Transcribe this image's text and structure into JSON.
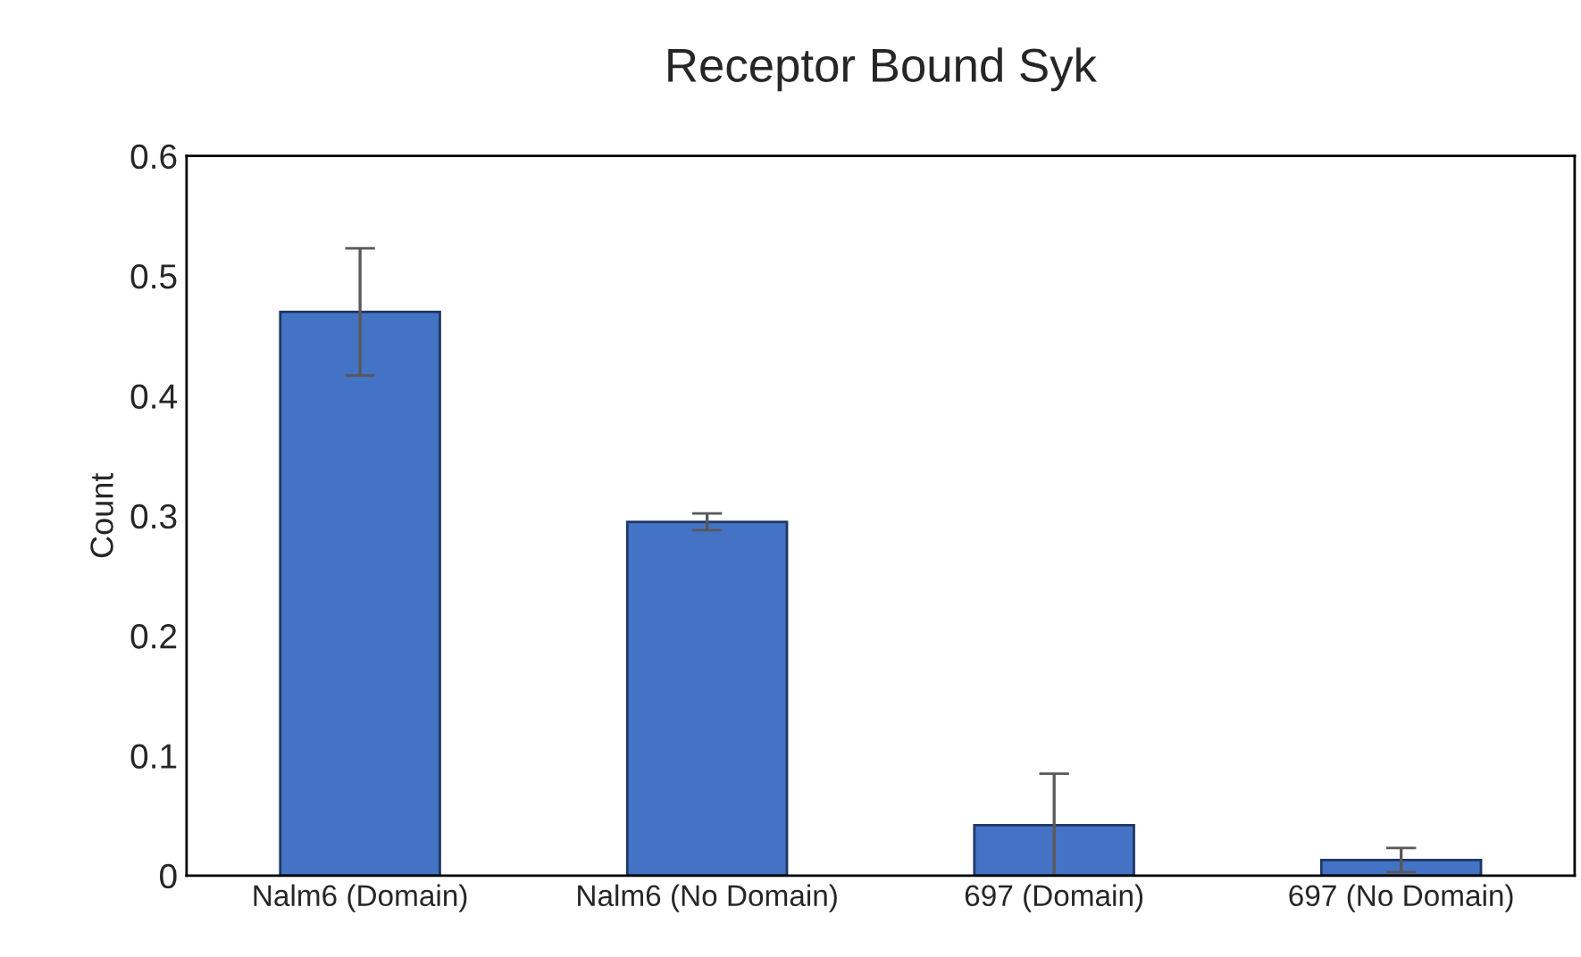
{
  "chart_data": {
    "type": "bar",
    "title": "Receptor Bound Syk",
    "ylabel": "Count",
    "categories": [
      "Nalm6 (Domain)",
      "Nalm6 (No Domain)",
      "697 (Domain)",
      "697 (No Domain)"
    ],
    "values": [
      0.47,
      0.295,
      0.042,
      0.013
    ],
    "errors": [
      0.053,
      0.007,
      0.043,
      0.01
    ],
    "color": "#4472c4",
    "ylim": [
      0,
      0.6
    ],
    "yticks": [
      {
        "value": 0,
        "label": "0"
      },
      0.1,
      0.2,
      0.3,
      0.4,
      0.5,
      0.6
    ],
    "grid": false,
    "legend": false
  }
}
